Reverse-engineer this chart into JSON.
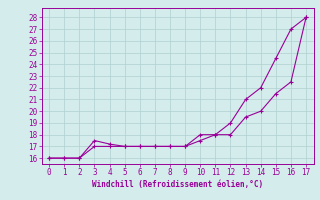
{
  "line1_x": [
    0,
    1,
    2,
    3,
    4,
    5,
    6,
    7,
    8,
    9,
    10,
    11,
    12,
    13,
    14,
    15,
    16,
    17
  ],
  "line1_y": [
    16,
    16,
    16,
    17,
    17,
    17,
    17,
    17,
    17,
    17,
    18,
    18,
    19,
    21,
    22,
    24.5,
    27,
    28
  ],
  "line2_x": [
    0,
    1,
    2,
    3,
    4,
    5,
    6,
    7,
    8,
    9,
    10,
    11,
    12,
    13,
    14,
    15,
    16,
    17
  ],
  "line2_y": [
    16,
    16,
    16,
    17.5,
    17.2,
    17.0,
    17.0,
    17.0,
    17.0,
    17.0,
    17.5,
    18,
    18,
    19.5,
    20,
    21.5,
    22.5,
    28
  ],
  "line_color": "#990099",
  "marker": "+",
  "markersize": 3,
  "linewidth": 0.8,
  "xlabel": "Windchill (Refroidissement éolien,°C)",
  "xlabel_fontsize": 5.5,
  "ylim": [
    15.5,
    28.8
  ],
  "xlim": [
    -0.5,
    17.5
  ],
  "yticks": [
    16,
    17,
    18,
    19,
    20,
    21,
    22,
    23,
    24,
    25,
    26,
    27,
    28
  ],
  "xticks": [
    0,
    1,
    2,
    3,
    4,
    5,
    6,
    7,
    8,
    9,
    10,
    11,
    12,
    13,
    14,
    15,
    16,
    17
  ],
  "bg_color": "#d5ecec",
  "grid_color": "#b0d0d0",
  "tick_fontsize": 5.5
}
